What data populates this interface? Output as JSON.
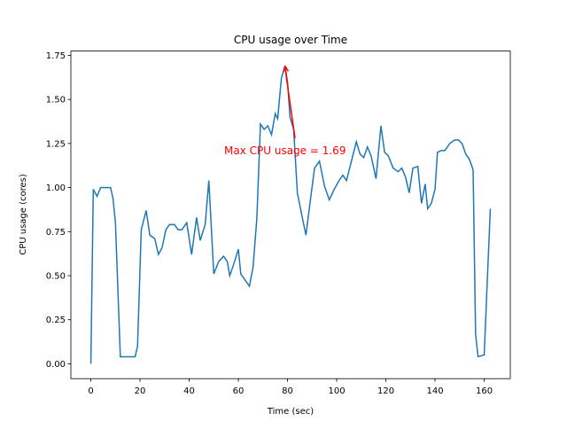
{
  "chart_data": {
    "type": "line",
    "title": "CPU usage over Time",
    "x_label": "Time (sec)",
    "y_label": "CPU usage (cores)",
    "x": [
      0,
      1,
      2.5,
      4,
      6,
      8,
      9,
      10,
      12,
      14,
      16,
      18,
      19,
      20.5,
      22.5,
      24,
      26,
      27.5,
      29,
      30.5,
      32,
      34,
      35.5,
      37,
      39,
      41,
      43,
      44.5,
      46.5,
      48,
      50,
      52,
      54,
      55.5,
      56.5,
      58,
      60,
      61,
      63,
      64.5,
      66,
      67.5,
      69,
      70.5,
      72,
      73.5,
      75,
      76,
      77.5,
      79,
      80,
      81,
      82.5,
      84,
      86,
      87.5,
      89.5,
      91,
      93,
      95,
      97,
      99,
      101,
      102.5,
      104,
      106,
      108,
      109.5,
      111,
      112.5,
      114,
      116,
      118,
      119.5,
      121,
      123,
      125,
      126.5,
      128,
      129.5,
      131,
      133,
      134.5,
      136,
      137,
      138.5,
      140,
      141,
      142.5,
      144,
      146,
      148,
      149.5,
      151,
      152.5,
      154,
      155.5,
      156.5,
      157.5,
      160,
      162.5
    ],
    "series": [
      {
        "name": "CPU usage",
        "color": "#1f77b4",
        "values": [
          0,
          0.99,
          0.95,
          1.0,
          1.0,
          1.0,
          0.94,
          0.8,
          0.04,
          0.04,
          0.04,
          0.04,
          0.1,
          0.76,
          0.87,
          0.73,
          0.71,
          0.62,
          0.66,
          0.76,
          0.79,
          0.79,
          0.76,
          0.76,
          0.8,
          0.62,
          0.83,
          0.7,
          0.79,
          1.04,
          0.51,
          0.58,
          0.61,
          0.58,
          0.5,
          0.56,
          0.65,
          0.51,
          0.47,
          0.44,
          0.55,
          0.82,
          1.36,
          1.33,
          1.35,
          1.3,
          1.42,
          1.39,
          1.62,
          1.69,
          1.6,
          1.4,
          1.33,
          0.97,
          0.83,
          0.73,
          0.95,
          1.11,
          1.15,
          1.01,
          0.93,
          0.99,
          1.04,
          1.07,
          1.04,
          1.15,
          1.26,
          1.19,
          1.17,
          1.23,
          1.18,
          1.05,
          1.35,
          1.2,
          1.18,
          1.11,
          1.09,
          1.11,
          1.06,
          0.97,
          1.11,
          1.12,
          0.91,
          1.02,
          0.88,
          0.91,
          0.99,
          1.2,
          1.21,
          1.21,
          1.25,
          1.27,
          1.27,
          1.25,
          1.19,
          1.16,
          1.1,
          0.17,
          0.04,
          0.05,
          0.88
        ]
      }
    ],
    "annotation": {
      "text": "Max CPU usage = 1.69",
      "color": "#ff0000"
    },
    "xlim": [
      -8.125,
      170.625
    ],
    "ylim": [
      -0.0845,
      1.7745
    ],
    "xticks": [
      0,
      20,
      40,
      60,
      80,
      100,
      120,
      140,
      160
    ],
    "yticks": [
      {
        "value": 0,
        "label": "0.00"
      },
      {
        "value": 0.25,
        "label": "0.25"
      },
      {
        "value": 0.5,
        "label": "0.50"
      },
      {
        "value": 0.75,
        "label": "0.75"
      },
      {
        "value": 1,
        "label": "1.00"
      },
      {
        "value": 1.25,
        "label": "1.25"
      },
      {
        "value": 1.5,
        "label": "1.50"
      },
      {
        "value": 1.75,
        "label": "1.75"
      }
    ]
  }
}
